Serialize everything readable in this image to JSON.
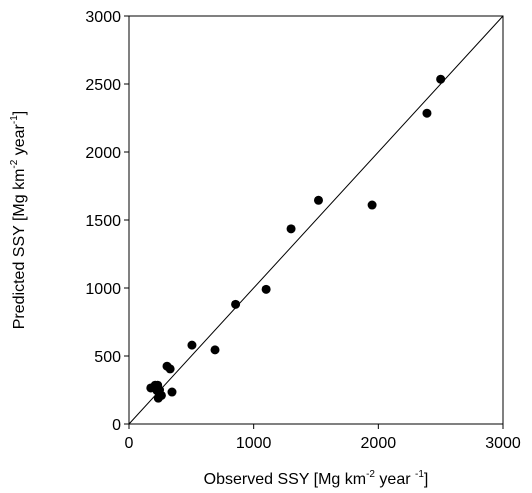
{
  "chart_data": {
    "type": "scatter",
    "xlabel": {
      "base": "Observed SSY [Mg km",
      "sup1": "-2",
      "mid": " year ",
      "sup2": "-1",
      "end": "]"
    },
    "ylabel": {
      "base": "Predicted SSY [Mg km",
      "sup1": "-2",
      "mid": " year",
      "sup2": "-1",
      "end": "]"
    },
    "xlim": [
      0,
      3000
    ],
    "ylim": [
      0,
      3000
    ],
    "x_ticks": [
      "0",
      "1000",
      "2000",
      "3000"
    ],
    "y_ticks": [
      "0",
      "500",
      "1000",
      "1500",
      "2000",
      "2500",
      "3000"
    ],
    "reference_line": "1:1",
    "grid": false,
    "series": [
      {
        "points": [
          {
            "x": 175,
            "y": 265
          },
          {
            "x": 210,
            "y": 285
          },
          {
            "x": 215,
            "y": 265
          },
          {
            "x": 230,
            "y": 285
          },
          {
            "x": 225,
            "y": 245
          },
          {
            "x": 235,
            "y": 190
          },
          {
            "x": 245,
            "y": 250
          },
          {
            "x": 260,
            "y": 210
          },
          {
            "x": 305,
            "y": 425
          },
          {
            "x": 330,
            "y": 405
          },
          {
            "x": 345,
            "y": 235
          },
          {
            "x": 505,
            "y": 580
          },
          {
            "x": 690,
            "y": 545
          },
          {
            "x": 855,
            "y": 880
          },
          {
            "x": 1100,
            "y": 990
          },
          {
            "x": 1300,
            "y": 1435
          },
          {
            "x": 1520,
            "y": 1645
          },
          {
            "x": 1950,
            "y": 1610
          },
          {
            "x": 2390,
            "y": 2285
          },
          {
            "x": 2500,
            "y": 2535
          }
        ]
      }
    ]
  }
}
